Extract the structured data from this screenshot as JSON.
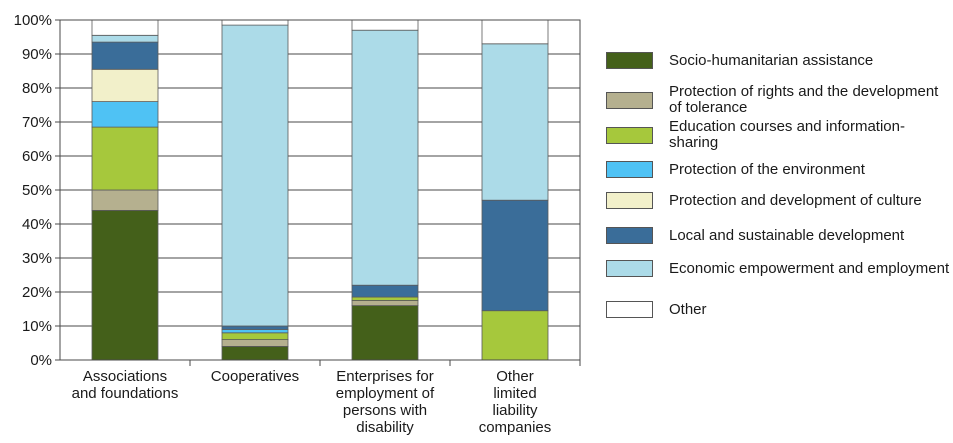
{
  "chart_data": {
    "type": "bar",
    "stacked": true,
    "percent": true,
    "categories": [
      [
        "Associations",
        "and foundations"
      ],
      [
        "Cooperatives"
      ],
      [
        "Enterprises for",
        "employment of",
        "persons with",
        "disability"
      ],
      [
        "Other",
        "limited",
        "liability",
        "companies"
      ]
    ],
    "series": [
      {
        "name": "Socio-humanitarian assistance",
        "color": "#44601a",
        "values": [
          44,
          4,
          16,
          0
        ]
      },
      {
        "name": "Protection of rights and the development of tolerance",
        "color": "#b5b08f",
        "values": [
          6,
          2,
          1.5,
          0
        ]
      },
      {
        "name": "Education courses and information-sharing",
        "color": "#a6c83c",
        "values": [
          18.5,
          2,
          1,
          14.5
        ]
      },
      {
        "name": "Protection of the environment",
        "color": "#4fc2f4",
        "values": [
          7.5,
          1,
          0,
          0
        ]
      },
      {
        "name": "Protection and development of culture",
        "color": "#f2f0ca",
        "values": [
          9.5,
          0,
          0,
          0
        ]
      },
      {
        "name": "Local and sustainable development",
        "color": "#3a6d99",
        "values": [
          8,
          1,
          3.5,
          32.5
        ]
      },
      {
        "name": "Economic empowerment and employment",
        "color": "#acdbe8",
        "values": [
          2,
          88.5,
          75,
          46
        ]
      },
      {
        "name": "Other",
        "color": "#ffffff",
        "values": [
          4.5,
          1.5,
          3,
          7
        ]
      }
    ],
    "legend_lines": [
      [
        "Socio-humanitarian assistance"
      ],
      [
        "Protection of rights and the",
        "development of tolerance"
      ],
      [
        "Education courses and",
        "information-sharing"
      ],
      [
        "Protection of the environment"
      ],
      [
        "Protection and development",
        "of culture"
      ],
      [
        "Local and sustainable development"
      ],
      [
        "Economic empowerment",
        "and employment"
      ],
      [
        "Other"
      ]
    ],
    "y_ticks": [
      "0%",
      "10%",
      "20%",
      "30%",
      "40%",
      "50%",
      "60%",
      "70%",
      "80%",
      "90%",
      "100%"
    ],
    "ylim": [
      0,
      100
    ],
    "grid": true,
    "legend_position": "right"
  }
}
